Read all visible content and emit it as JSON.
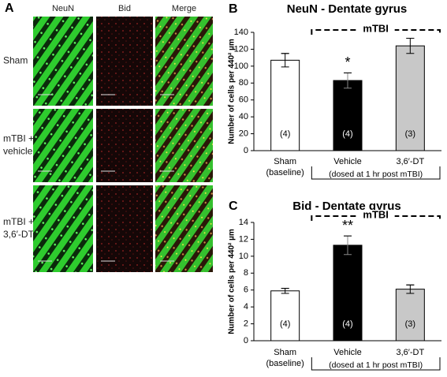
{
  "panel_a": {
    "letter": "A",
    "columns": [
      "NeuN",
      "Bid",
      "Merge"
    ],
    "rows": [
      [
        "Sham"
      ],
      [
        "mTBI +",
        "vehicle"
      ],
      [
        "mTBI +",
        "3,6′-DT"
      ]
    ]
  },
  "chart_data": [
    {
      "type": "bar",
      "letter": "B",
      "title": "NeuN - Dentate gyrus",
      "y_label": "Number of cells  per 440² µm",
      "categories": [
        "Sham (baseline)",
        "Vehicle",
        "3,6′-DT"
      ],
      "values": [
        107,
        83,
        124
      ],
      "errors": [
        8,
        9,
        9
      ],
      "colors": [
        "#ffffff",
        "#000000",
        "#c8c8c8"
      ],
      "n_labels": [
        "(4)",
        "(4)",
        "(3)"
      ],
      "significance": [
        null,
        "*",
        null
      ],
      "group_label": "mTBI",
      "group_note": "(dosed at 1 hr post mTBI)",
      "ylim": [
        0,
        140
      ],
      "yticks": [
        0,
        20,
        40,
        60,
        80,
        100,
        120,
        140
      ]
    },
    {
      "type": "bar",
      "letter": "C",
      "title": "Bid - Dentate gyrus",
      "y_label": "Number of cells  per 440² µm",
      "categories": [
        "Sham (baseline)",
        "Vehicle",
        "3,6′-DT"
      ],
      "values": [
        5.9,
        11.3,
        6.1
      ],
      "errors": [
        0.3,
        1.1,
        0.5
      ],
      "colors": [
        "#ffffff",
        "#000000",
        "#c8c8c8"
      ],
      "n_labels": [
        "(4)",
        "(4)",
        "(3)"
      ],
      "significance": [
        null,
        "**",
        null
      ],
      "group_label": "mTBI",
      "group_note": "(dosed at 1 hr post mTBI)",
      "ylim": [
        0,
        14
      ],
      "yticks": [
        0,
        2,
        4,
        6,
        8,
        10,
        12,
        14
      ]
    }
  ]
}
